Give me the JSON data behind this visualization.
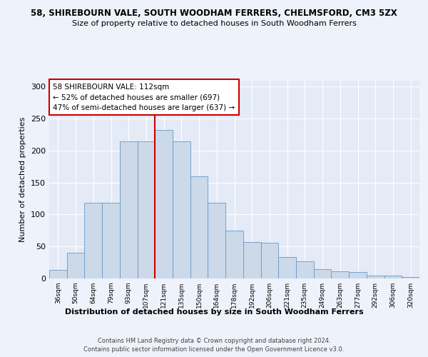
{
  "title": "58, SHIREBOURN VALE, SOUTH WOODHAM FERRERS, CHELMSFORD, CM3 5ZX",
  "subtitle": "Size of property relative to detached houses in South Woodham Ferrers",
  "xlabel": "Distribution of detached houses by size in South Woodham Ferrers",
  "ylabel": "Number of detached properties",
  "bar_color": "#ccd9e8",
  "bar_edge_color": "#6699cc",
  "ref_line_color": "#cc0000",
  "annotation_box_edge": "#cc0000",
  "annotation_title": "58 SHIREBOURN VALE: 112sqm",
  "annotation_line1": "← 52% of detached houses are smaller (697)",
  "annotation_line2": "47% of semi-detached houses are larger (637) →",
  "background_color": "#eef2fa",
  "plot_bg_color": "#e4eaf6",
  "footer_line1": "Contains HM Land Registry data © Crown copyright and database right 2024.",
  "footer_line2": "Contains public sector information licensed under the Open Government Licence v3.0.",
  "ylim": [
    0,
    310
  ],
  "categories": [
    "36sqm",
    "50sqm",
    "64sqm",
    "79sqm",
    "93sqm",
    "107sqm",
    "121sqm",
    "135sqm",
    "150sqm",
    "164sqm",
    "178sqm",
    "192sqm",
    "206sqm",
    "221sqm",
    "235sqm",
    "249sqm",
    "263sqm",
    "277sqm",
    "292sqm",
    "306sqm",
    "320sqm"
  ],
  "counts": [
    13,
    40,
    118,
    118,
    215,
    215,
    232,
    215,
    160,
    118,
    75,
    57,
    56,
    34,
    27,
    14,
    11,
    10,
    5,
    4,
    2
  ],
  "ref_bar_index": 6,
  "yticks": [
    0,
    50,
    100,
    150,
    200,
    250,
    300
  ]
}
